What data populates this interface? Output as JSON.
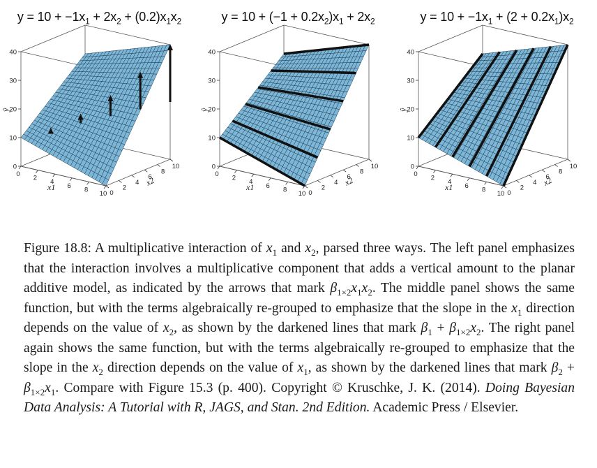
{
  "panels": [
    {
      "title_text": "y = 10 + −1x1 + 2x2 + (0.2)x1x2",
      "emphasis": "arrows"
    },
    {
      "title_text": "y = 10 + (−1 + 0.2x2)x1 + 2x2",
      "emphasis": "lines-along-x1"
    },
    {
      "title_text": "y = 10 + −1x1 + (2 + 0.2x1)x2",
      "emphasis": "lines-along-x2"
    }
  ],
  "axes": {
    "z_ticks": [
      "0",
      "10",
      "20",
      "30",
      "40"
    ],
    "z_label": "ŷ",
    "x1_ticks": [
      "0",
      "2",
      "4",
      "6",
      "8",
      "10"
    ],
    "x1_label": "x1",
    "x2_ticks": [
      "0",
      "2",
      "4",
      "6",
      "8",
      "10"
    ],
    "x2_label": "x2"
  },
  "surface_color": "#7db6d6",
  "caption": {
    "figure_label": "Figure 18.8:",
    "s1": "A multiplicative interaction of",
    "v_x1": "x",
    "s2": "and",
    "s3": ", parsed three ways. The left panel emphasizes that the interaction involves a multiplicative component that adds a vertical amount to the planar additive model, as indicated by the arrows that mark",
    "s4": ". The middle panel shows the same function, but with the terms algebraically re-grouped to emphasize that the slope in the",
    "s5": "direction depends on the value of",
    "s6": ", as shown by the darkened lines that mark",
    "s7": ". The right panel again shows the same function, but with the terms algebraically re-grouped to emphasize that the slope in the",
    "s8": "direction depends on the value of",
    "s9": ", as shown by the darkened lines that mark",
    "s10": ". Compare with Figure 15.3 (p. 400).",
    "copyright": "Copyright © Kruschke, J. K. (2014).",
    "book_title": "Doing Bayesian Data Analysis: A Tutorial with R, JAGS, and Stan. 2nd Edition.",
    "publisher": "Academic Press / Elsevier."
  }
}
